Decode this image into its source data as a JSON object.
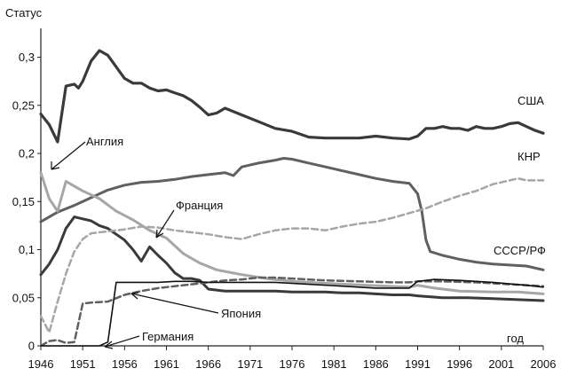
{
  "chart_data": {
    "type": "line",
    "title": "",
    "xlabel": "год",
    "ylabel": "Статус",
    "xlim": [
      1946,
      2006
    ],
    "ylim": [
      0,
      0.33
    ],
    "grid": false,
    "x_ticks": [
      "1946",
      "1951",
      "1956",
      "1961",
      "1966",
      "1971",
      "1976",
      "1981",
      "1986",
      "1991",
      "1996",
      "2001",
      "2006"
    ],
    "y_ticks": [
      "0",
      "0,05",
      "0,1",
      "0,15",
      "0,2",
      "0,25",
      "0,3"
    ],
    "series": [
      {
        "name": "США",
        "color": "#3a3a3a",
        "dash": "solid",
        "width": 3.2,
        "points": [
          [
            1946,
            0.241
          ],
          [
            1947,
            0.23
          ],
          [
            1948,
            0.212
          ],
          [
            1949,
            0.27
          ],
          [
            1950,
            0.272
          ],
          [
            1950.5,
            0.268
          ],
          [
            1951,
            0.275
          ],
          [
            1952,
            0.296
          ],
          [
            1953,
            0.307
          ],
          [
            1954,
            0.302
          ],
          [
            1955,
            0.29
          ],
          [
            1956,
            0.278
          ],
          [
            1957,
            0.273
          ],
          [
            1958,
            0.273
          ],
          [
            1959,
            0.268
          ],
          [
            1960,
            0.265
          ],
          [
            1961,
            0.266
          ],
          [
            1962,
            0.263
          ],
          [
            1963,
            0.26
          ],
          [
            1964,
            0.255
          ],
          [
            1965,
            0.248
          ],
          [
            1966,
            0.24
          ],
          [
            1967,
            0.242
          ],
          [
            1968,
            0.247
          ],
          [
            1970,
            0.24
          ],
          [
            1972,
            0.233
          ],
          [
            1974,
            0.226
          ],
          [
            1976,
            0.223
          ],
          [
            1978,
            0.217
          ],
          [
            1980,
            0.216
          ],
          [
            1982,
            0.216
          ],
          [
            1984,
            0.216
          ],
          [
            1986,
            0.218
          ],
          [
            1988,
            0.216
          ],
          [
            1990,
            0.215
          ],
          [
            1991,
            0.218
          ],
          [
            1992,
            0.226
          ],
          [
            1993,
            0.226
          ],
          [
            1994,
            0.228
          ],
          [
            1995,
            0.226
          ],
          [
            1996,
            0.226
          ],
          [
            1997,
            0.224
          ],
          [
            1998,
            0.228
          ],
          [
            1999,
            0.226
          ],
          [
            2000,
            0.226
          ],
          [
            2001,
            0.228
          ],
          [
            2002,
            0.231
          ],
          [
            2003,
            0.232
          ],
          [
            2004,
            0.228
          ],
          [
            2005,
            0.224
          ],
          [
            2006,
            0.221
          ]
        ]
      },
      {
        "name": "КНР",
        "color": "#606060",
        "dash": "solid",
        "width": 3,
        "points": [
          [
            1946,
            0.129
          ],
          [
            1948,
            0.139
          ],
          [
            1950,
            0.146
          ],
          [
            1952,
            0.154
          ],
          [
            1954,
            0.162
          ],
          [
            1956,
            0.167
          ],
          [
            1958,
            0.17
          ],
          [
            1960,
            0.171
          ],
          [
            1962,
            0.173
          ],
          [
            1964,
            0.176
          ],
          [
            1966,
            0.178
          ],
          [
            1968,
            0.18
          ],
          [
            1969,
            0.177
          ],
          [
            1970,
            0.186
          ],
          [
            1972,
            0.19
          ],
          [
            1974,
            0.193
          ],
          [
            1975,
            0.195
          ],
          [
            1976,
            0.194
          ],
          [
            1978,
            0.19
          ],
          [
            1980,
            0.186
          ],
          [
            1982,
            0.182
          ],
          [
            1984,
            0.178
          ],
          [
            1986,
            0.174
          ],
          [
            1988,
            0.171
          ],
          [
            1990,
            0.169
          ],
          [
            1991,
            0.158
          ],
          [
            1991.5,
            0.14
          ],
          [
            1992,
            0.11
          ],
          [
            1992.5,
            0.098
          ],
          [
            1994,
            0.094
          ],
          [
            1996,
            0.09
          ],
          [
            1998,
            0.087
          ],
          [
            2000,
            0.085
          ],
          [
            2002,
            0.084
          ],
          [
            2004,
            0.083
          ],
          [
            2006,
            0.079
          ]
        ]
      },
      {
        "name": "СССР/РФ",
        "color": "#3a3a3a",
        "dash": "solid",
        "width": 3,
        "points": [
          [
            1946,
            0.074
          ],
          [
            1947,
            0.085
          ],
          [
            1948,
            0.1
          ],
          [
            1949,
            0.122
          ],
          [
            1950,
            0.134
          ],
          [
            1951,
            0.132
          ],
          [
            1952,
            0.13
          ],
          [
            1953,
            0.125
          ],
          [
            1954,
            0.122
          ],
          [
            1955,
            0.116
          ],
          [
            1956,
            0.11
          ],
          [
            1957,
            0.1
          ],
          [
            1958,
            0.088
          ],
          [
            1959,
            0.103
          ],
          [
            1960,
            0.094
          ],
          [
            1961,
            0.086
          ],
          [
            1962,
            0.076
          ],
          [
            1963,
            0.07
          ],
          [
            1964,
            0.07
          ],
          [
            1965,
            0.068
          ],
          [
            1966,
            0.059
          ],
          [
            1968,
            0.057
          ],
          [
            1970,
            0.057
          ],
          [
            1972,
            0.057
          ],
          [
            1974,
            0.057
          ],
          [
            1976,
            0.056
          ],
          [
            1978,
            0.056
          ],
          [
            1980,
            0.056
          ],
          [
            1982,
            0.055
          ],
          [
            1984,
            0.055
          ],
          [
            1986,
            0.054
          ],
          [
            1988,
            0.053
          ],
          [
            1990,
            0.053
          ],
          [
            1991,
            0.052
          ],
          [
            1994,
            0.05
          ],
          [
            1997,
            0.05
          ],
          [
            2000,
            0.049
          ],
          [
            2003,
            0.048
          ],
          [
            2006,
            0.047
          ]
        ]
      },
      {
        "name": "Англия",
        "color": "#a6a6a6",
        "dash": "solid",
        "width": 3,
        "points": [
          [
            1946,
            0.18
          ],
          [
            1947,
            0.153
          ],
          [
            1948,
            0.14
          ],
          [
            1949,
            0.171
          ],
          [
            1950,
            0.166
          ],
          [
            1951,
            0.161
          ],
          [
            1952,
            0.157
          ],
          [
            1953,
            0.153
          ],
          [
            1955,
            0.14
          ],
          [
            1957,
            0.131
          ],
          [
            1959,
            0.12
          ],
          [
            1961,
            0.112
          ],
          [
            1963,
            0.096
          ],
          [
            1965,
            0.086
          ],
          [
            1967,
            0.079
          ],
          [
            1970,
            0.074
          ],
          [
            1973,
            0.07
          ],
          [
            1976,
            0.067
          ],
          [
            1980,
            0.065
          ],
          [
            1985,
            0.063
          ],
          [
            1990,
            0.061
          ],
          [
            1991,
            0.063
          ],
          [
            1993,
            0.06
          ],
          [
            1996,
            0.057
          ],
          [
            2000,
            0.056
          ],
          [
            2003,
            0.056
          ],
          [
            2006,
            0.054
          ]
        ]
      },
      {
        "name": "Франция",
        "color": "#a6a6a6",
        "dash": "dashed",
        "width": 2.5,
        "points": [
          [
            1946,
            0.031
          ],
          [
            1947,
            0.014
          ],
          [
            1948,
            0.046
          ],
          [
            1949,
            0.075
          ],
          [
            1950,
            0.098
          ],
          [
            1951,
            0.111
          ],
          [
            1952,
            0.117
          ],
          [
            1954,
            0.119
          ],
          [
            1956,
            0.121
          ],
          [
            1958,
            0.124
          ],
          [
            1960,
            0.123
          ],
          [
            1962,
            0.12
          ],
          [
            1964,
            0.118
          ],
          [
            1966,
            0.116
          ],
          [
            1968,
            0.113
          ],
          [
            1970,
            0.111
          ],
          [
            1972,
            0.116
          ],
          [
            1974,
            0.12
          ],
          [
            1976,
            0.122
          ],
          [
            1978,
            0.122
          ],
          [
            1980,
            0.12
          ],
          [
            1982,
            0.124
          ],
          [
            1984,
            0.127
          ],
          [
            1986,
            0.129
          ],
          [
            1988,
            0.133
          ],
          [
            1990,
            0.138
          ],
          [
            1992,
            0.143
          ],
          [
            1994,
            0.15
          ],
          [
            1996,
            0.156
          ],
          [
            1998,
            0.161
          ],
          [
            2000,
            0.168
          ],
          [
            2002,
            0.172
          ],
          [
            2003,
            0.174
          ],
          [
            2004,
            0.172
          ],
          [
            2006,
            0.172
          ]
        ]
      },
      {
        "name": "Япония",
        "color": "#606060",
        "dash": "dashed",
        "width": 2.5,
        "points": [
          [
            1946,
            0.0
          ],
          [
            1947,
            0.005
          ],
          [
            1948,
            0.006
          ],
          [
            1949,
            0.003
          ],
          [
            1950,
            0.004
          ],
          [
            1951,
            0.044
          ],
          [
            1952,
            0.045
          ],
          [
            1954,
            0.046
          ],
          [
            1956,
            0.053
          ],
          [
            1958,
            0.057
          ],
          [
            1960,
            0.06
          ],
          [
            1962,
            0.062
          ],
          [
            1964,
            0.064
          ],
          [
            1966,
            0.066
          ],
          [
            1968,
            0.068
          ],
          [
            1970,
            0.069
          ],
          [
            1972,
            0.071
          ],
          [
            1974,
            0.071
          ],
          [
            1976,
            0.07
          ],
          [
            1980,
            0.068
          ],
          [
            1984,
            0.067
          ],
          [
            1988,
            0.066
          ],
          [
            1990,
            0.066
          ],
          [
            1991,
            0.067
          ],
          [
            1994,
            0.067
          ],
          [
            1998,
            0.066
          ],
          [
            2002,
            0.064
          ],
          [
            2006,
            0.062
          ]
        ]
      },
      {
        "name": "Германия",
        "color": "#111111",
        "dash": "solid",
        "width": 1.6,
        "points": [
          [
            1946,
            0.0
          ],
          [
            1953,
            0.0
          ],
          [
            1954,
            0.004
          ],
          [
            1955,
            0.066
          ],
          [
            1956,
            0.066
          ],
          [
            1958,
            0.066
          ],
          [
            1960,
            0.066
          ],
          [
            1962,
            0.067
          ],
          [
            1964,
            0.067
          ],
          [
            1966,
            0.066
          ],
          [
            1968,
            0.066
          ],
          [
            1970,
            0.066
          ],
          [
            1974,
            0.066
          ],
          [
            1978,
            0.064
          ],
          [
            1982,
            0.062
          ],
          [
            1986,
            0.06
          ],
          [
            1990,
            0.06
          ],
          [
            1991,
            0.067
          ],
          [
            1993,
            0.069
          ],
          [
            1996,
            0.068
          ],
          [
            2000,
            0.066
          ],
          [
            2004,
            0.063
          ],
          [
            2006,
            0.061
          ]
        ]
      }
    ],
    "labels": {
      "usa": "США",
      "china": "КНР",
      "ussr": "СССР/РФ",
      "england": "Англия",
      "france": "Франция",
      "japan": "Япония",
      "germany": "Германия"
    }
  }
}
